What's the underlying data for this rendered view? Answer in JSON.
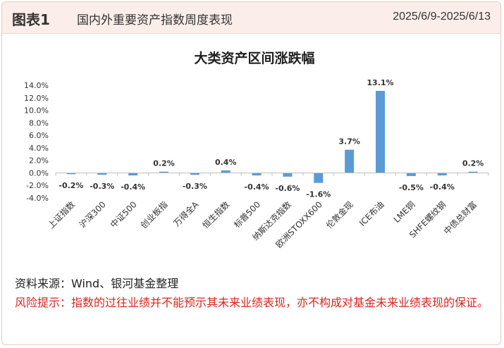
{
  "header": {
    "figure_label": "图表1",
    "figure_title": "国内外重要资产指数周度表现",
    "date_range": "2025/6/9-2025/6/13"
  },
  "colors": {
    "header_bg": "#fbeeea",
    "bar": "#5b9bd5",
    "risk_text": "#d9251d"
  },
  "chart_data": {
    "type": "bar",
    "title": "大类资产区间涨跌幅",
    "categories": [
      "上证指数",
      "沪深300",
      "中证500",
      "创业板指",
      "万得全A",
      "恒生指数",
      "标普500",
      "纳斯达克指数",
      "欧洲STOXX600",
      "伦敦金现",
      "ICE布油",
      "LME铜",
      "SHFE螺纹钢",
      "中债总财富"
    ],
    "values": [
      -0.2,
      -0.3,
      -0.4,
      0.2,
      -0.3,
      0.4,
      -0.4,
      -0.6,
      -1.6,
      3.7,
      13.1,
      -0.5,
      -0.4,
      0.2
    ],
    "data_labels": [
      "-0.2%",
      "-0.3%",
      "-0.4%",
      "0.2%",
      "-0.3%",
      "0.4%",
      "-0.4%",
      "-0.6%",
      "-1.6%",
      "3.7%",
      "13.1%",
      "-0.5%",
      "-0.4%",
      "0.2%"
    ],
    "ylim": [
      -4,
      14
    ],
    "yticks": [
      -4,
      -2,
      0,
      2,
      4,
      6,
      8,
      10,
      12,
      14
    ],
    "ytick_labels": [
      "-4.0%",
      "-2.0%",
      "0.0%",
      "2.0%",
      "4.0%",
      "6.0%",
      "8.0%",
      "10.0%",
      "12.0%",
      "14.0%"
    ],
    "xlabel": "",
    "ylabel": "",
    "grid": false,
    "legend": false
  },
  "footer": {
    "source": "资料来源：Wind、银河基金整理",
    "risk_notice": "风险提示：指数的过往业绩并不能预示其未来业绩表现，亦不构成对基金未来业绩表现的保证。"
  }
}
